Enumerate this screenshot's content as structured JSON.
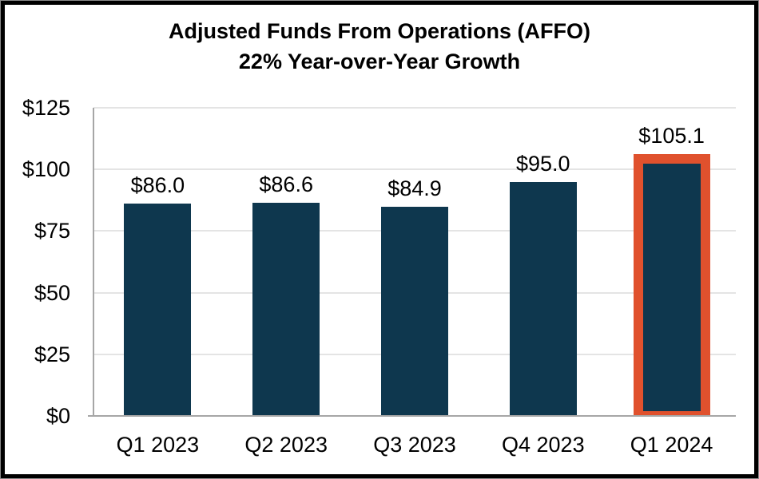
{
  "title": {
    "line1": "Adjusted Funds From Operations (AFFO)",
    "line2": "22% Year-over-Year Growth"
  },
  "chart_data": {
    "type": "bar",
    "title": "Adjusted Funds From Operations (AFFO)",
    "subtitle": "22% Year-over-Year Growth",
    "categories": [
      "Q1 2023",
      "Q2 2023",
      "Q3 2023",
      "Q4 2023",
      "Q1 2024"
    ],
    "values": [
      86.0,
      86.6,
      84.9,
      95.0,
      105.1
    ],
    "data_labels": [
      "$86.0",
      "$86.6",
      "$84.9",
      "$95.0",
      "$105.1"
    ],
    "highlighted_index": 4,
    "ylim": [
      0,
      125
    ],
    "y_ticks": [
      0,
      25,
      50,
      75,
      100,
      125
    ],
    "y_tick_labels": [
      "$0",
      "$25",
      "$50",
      "$75",
      "$100",
      "$125"
    ],
    "grid": true,
    "legend": "none",
    "colors": {
      "bar": "#0e374e",
      "highlight_border": "#e0512d",
      "gridline": "#e4e4e4",
      "axis_line": "#a6a6a6",
      "frame": "#000000",
      "background": "#ffffff",
      "text": "#000000"
    }
  }
}
